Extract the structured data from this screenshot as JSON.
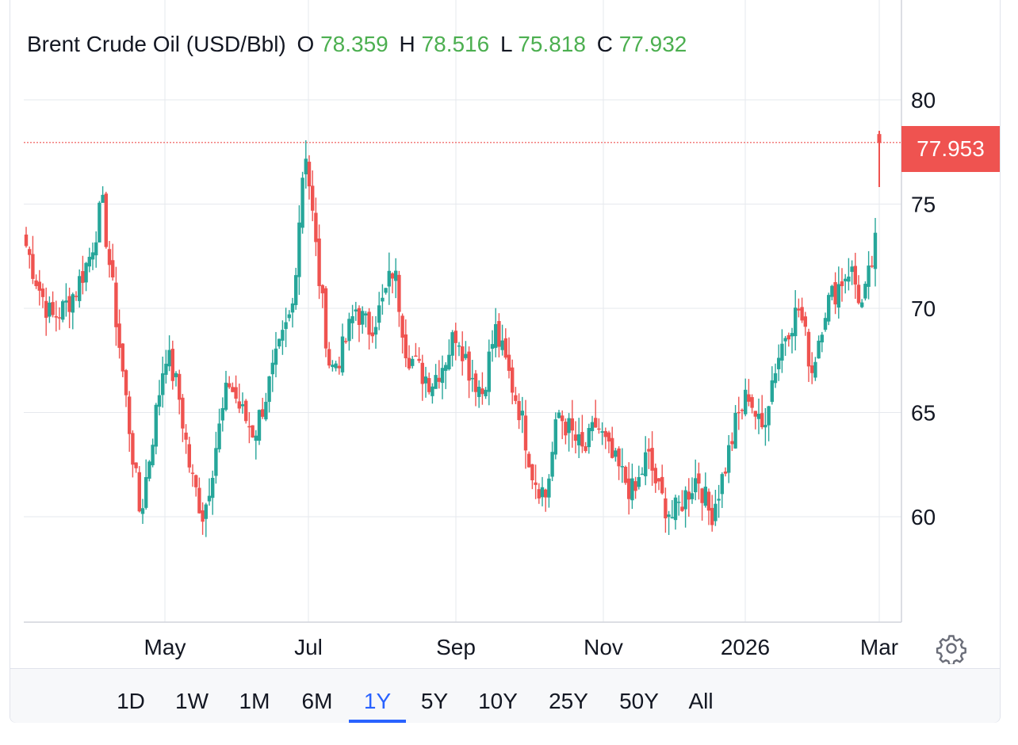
{
  "chart_data": {
    "type": "candlestick",
    "title": "Brent Crude Oil (USD/Bbl)",
    "ohlc_readout": {
      "o_label": "O",
      "o": "78.359",
      "h_label": "H",
      "h": "78.516",
      "l_label": "L",
      "l": "75.818",
      "c_label": "C",
      "c": "77.932"
    },
    "last_price": "77.953",
    "ylim": [
      55,
      85
    ],
    "y_ticks": [
      "80",
      "75",
      "70",
      "65",
      "60"
    ],
    "x_ticks": [
      "May",
      "Jul",
      "Sep",
      "Nov",
      "2026",
      "Mar"
    ],
    "grid": true,
    "series_anchor_closes": [
      73,
      71,
      69.5,
      70,
      71,
      72.5,
      75,
      70,
      65,
      60,
      64,
      68,
      66,
      62,
      60,
      63.5,
      66.5,
      65,
      64,
      66,
      68,
      70,
      78,
      72,
      67,
      68,
      70,
      69,
      70,
      72,
      68,
      67,
      66.5,
      67.5,
      69,
      67,
      66,
      69,
      67,
      65,
      62,
      61,
      65,
      64,
      63,
      64.5,
      63,
      62,
      61,
      63,
      61,
      60,
      61,
      62,
      60,
      62,
      64.5,
      66,
      64,
      67,
      69,
      70,
      67,
      70,
      71,
      72,
      70,
      73
    ],
    "final_candle": {
      "open": 78.359,
      "high": 78.516,
      "low": 75.818,
      "close": 77.932
    },
    "colors": {
      "up": "#26a69a",
      "down": "#ef5350",
      "grid": "#e6e8ee",
      "price_line": "#ef5350"
    }
  },
  "timeframes": {
    "items": [
      "1D",
      "1W",
      "1M",
      "6M",
      "1Y",
      "5Y",
      "10Y",
      "25Y",
      "50Y",
      "All"
    ],
    "selected": "1Y"
  },
  "icons": {
    "settings": "gear-icon"
  }
}
